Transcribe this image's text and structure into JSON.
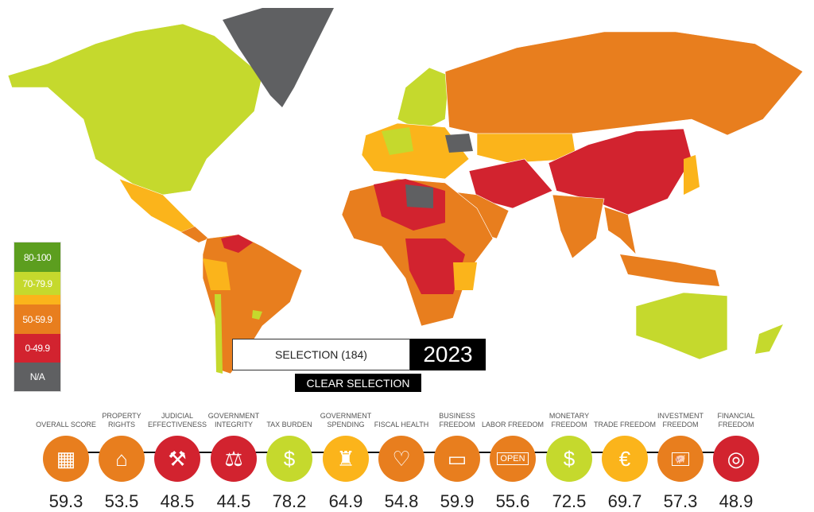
{
  "colors": {
    "80-100": "#5c9e1f",
    "70-79.9": "#c5d92d",
    "60-69.9": "#fbb41b",
    "50-59.9": "#e87e1e",
    "0-49.9": "#d2232f",
    "na": "#5f6062"
  },
  "legend": [
    {
      "label": "80-100",
      "color": "#5c9e1f"
    },
    {
      "label": "70-79.9",
      "color": "#c5d92d"
    },
    {
      "label": "",
      "color": "#fbb41b"
    },
    {
      "label": "50-59.9",
      "color": "#e87e1e"
    },
    {
      "label": "0-49.9",
      "color": "#d2232f"
    },
    {
      "label": "N/A",
      "color": "#5f6062"
    }
  ],
  "selection": {
    "label": "SELECTION (184)",
    "year": "2023",
    "clear_label": "CLEAR SELECTION"
  },
  "indicators": [
    {
      "label": "OVERALL SCORE",
      "value": "59.3",
      "color": "#e87e1e",
      "icon": "calculator-icon",
      "glyph": "▦"
    },
    {
      "label": "PROPERTY RIGHTS",
      "value": "53.5",
      "color": "#e87e1e",
      "icon": "house-icon",
      "glyph": "⌂"
    },
    {
      "label": "JUDICIAL EFFECTIVENESS",
      "value": "48.5",
      "color": "#d2232f",
      "icon": "gavel-icon",
      "glyph": "⚒"
    },
    {
      "label": "GOVERNMENT INTEGRITY",
      "value": "44.5",
      "color": "#d2232f",
      "icon": "scales-icon",
      "glyph": "⚖"
    },
    {
      "label": "TAX BURDEN",
      "value": "78.2",
      "color": "#c5d92d",
      "icon": "money-bag-icon",
      "glyph": "$"
    },
    {
      "label": "GOVERNMENT SPENDING",
      "value": "64.9",
      "color": "#fbb41b",
      "icon": "capitol-icon",
      "glyph": "♜"
    },
    {
      "label": "FISCAL HEALTH",
      "value": "54.8",
      "color": "#e87e1e",
      "icon": "heartbeat-icon",
      "glyph": "♡"
    },
    {
      "label": "BUSINESS FREEDOM",
      "value": "59.9",
      "color": "#e87e1e",
      "icon": "briefcase-icon",
      "glyph": "▭"
    },
    {
      "label": "LABOR FREEDOM",
      "value": "55.6",
      "color": "#e87e1e",
      "icon": "open-sign-icon",
      "glyph": "OPEN"
    },
    {
      "label": "MONETARY FREEDOM",
      "value": "72.5",
      "color": "#c5d92d",
      "icon": "coins-icon",
      "glyph": "$"
    },
    {
      "label": "TRADE FREEDOM",
      "value": "69.7",
      "color": "#fbb41b",
      "icon": "currency-icon",
      "glyph": "€"
    },
    {
      "label": "INVESTMENT FREEDOM",
      "value": "57.3",
      "color": "#e87e1e",
      "icon": "piggy-bank-icon",
      "glyph": "🐖"
    },
    {
      "label": "FINANCIAL FREEDOM",
      "value": "48.9",
      "color": "#d2232f",
      "icon": "safe-icon",
      "glyph": "◎"
    }
  ]
}
